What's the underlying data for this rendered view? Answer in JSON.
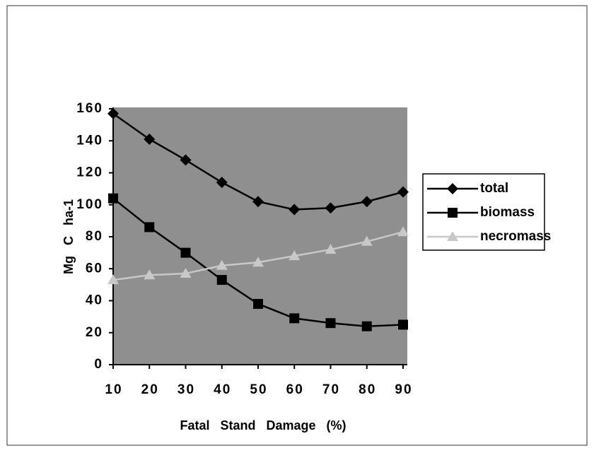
{
  "chart_data": {
    "type": "line",
    "x_label": "Fatal Stand Damage (%)",
    "y_label": "Mg C ha-1",
    "x": [
      10,
      20,
      30,
      40,
      50,
      60,
      70,
      80,
      90
    ],
    "series": [
      {
        "name": "total",
        "color": "#000000",
        "marker": "diamond",
        "values": [
          157,
          141,
          128,
          114,
          102,
          97,
          98,
          102,
          108
        ]
      },
      {
        "name": "biomass",
        "color": "#000000",
        "marker": "square",
        "values": [
          104,
          86,
          70,
          53,
          38,
          29,
          26,
          24,
          25
        ]
      },
      {
        "name": "necromass",
        "color": "#c8c8c8",
        "marker": "triangle",
        "values": [
          53,
          56,
          57,
          62,
          64,
          68,
          72,
          77,
          83
        ]
      }
    ],
    "xlim": [
      10,
      90
    ],
    "xticks": [
      10,
      20,
      30,
      40,
      50,
      60,
      70,
      80,
      90
    ],
    "ylim": [
      0,
      160
    ],
    "yticks": [
      0,
      20,
      40,
      60,
      80,
      100,
      120,
      140,
      160
    ],
    "plot_background": "#8f8f8f",
    "legend": "right"
  }
}
